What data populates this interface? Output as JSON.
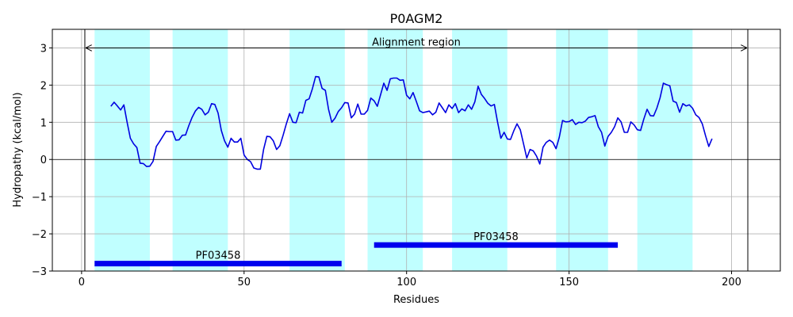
{
  "chart_data": {
    "type": "line",
    "title": "P0AGM2",
    "xlabel": "Residues",
    "ylabel": "Hydropathy (kcal/mol)",
    "xlim": [
      -9,
      215
    ],
    "ylim": [
      -3,
      3.5
    ],
    "xticks": [
      0,
      50,
      100,
      150,
      200
    ],
    "yticks": [
      -3,
      -2,
      -1,
      0,
      1,
      2,
      3
    ],
    "grid": true,
    "colors": {
      "line": "#0000e0",
      "band": "#c0ffff",
      "domain_bar": "#0000ee",
      "grid": "#b0b0b0",
      "axis": "#000000"
    },
    "shaded_regions": [
      [
        4,
        21
      ],
      [
        28,
        45
      ],
      [
        64,
        81
      ],
      [
        88,
        105
      ],
      [
        114,
        131
      ],
      [
        146,
        162
      ],
      [
        171,
        188
      ]
    ],
    "alignment_region": {
      "label": "Alignment region",
      "start": 1,
      "end": 205,
      "y": 3.0
    },
    "domains": [
      {
        "label": "PF03458",
        "start": 4,
        "end": 80,
        "y": -2.8
      },
      {
        "label": "PF03458",
        "start": 90,
        "end": 165,
        "y": -2.3
      }
    ],
    "series": [
      {
        "x": [
          9,
          10,
          11,
          12,
          13,
          14,
          15,
          16,
          17,
          18,
          19,
          20,
          21,
          22,
          23,
          24,
          25,
          26,
          27,
          28,
          29,
          30,
          31,
          32,
          33,
          34,
          35,
          36,
          37,
          38,
          39,
          40,
          41,
          42,
          43,
          44,
          45,
          46,
          47,
          48,
          49,
          50,
          51,
          52,
          53,
          54,
          55,
          56,
          57,
          58,
          59,
          60,
          61,
          62,
          63,
          64,
          65,
          66,
          67,
          68,
          69,
          70,
          71,
          72,
          73,
          74,
          75,
          76,
          77,
          78,
          79,
          80,
          81,
          82,
          83,
          84,
          85,
          86,
          87,
          88,
          89,
          90,
          91,
          92,
          93,
          94,
          95,
          96,
          97,
          98,
          99,
          100,
          101,
          102,
          103,
          104,
          105,
          106,
          107,
          108,
          109,
          110,
          111,
          112,
          113,
          114,
          115,
          116,
          117,
          118,
          119,
          120,
          121,
          122,
          123,
          124,
          125,
          126,
          127,
          128,
          129,
          130,
          131,
          132,
          133,
          134,
          135,
          136,
          137,
          138,
          139,
          140,
          141,
          142,
          143,
          144,
          145,
          146,
          147,
          148,
          149,
          150,
          151,
          152,
          153,
          154,
          155,
          156,
          157,
          158,
          159,
          160,
          161,
          162,
          163,
          164,
          165,
          166,
          167,
          168,
          169,
          170,
          171,
          172,
          173,
          174,
          175,
          176,
          177,
          178,
          179,
          180,
          181,
          182,
          183,
          184,
          185,
          186,
          187,
          188,
          189,
          190,
          191,
          192,
          193,
          194
        ],
        "values": [
          1.43,
          1.54,
          1.44,
          1.33,
          1.47,
          1.0,
          0.57,
          0.42,
          0.32,
          -0.1,
          -0.11,
          -0.19,
          -0.18,
          -0.05,
          0.35,
          0.48,
          0.62,
          0.76,
          0.75,
          0.75,
          0.52,
          0.53,
          0.65,
          0.66,
          0.91,
          1.13,
          1.3,
          1.4,
          1.35,
          1.2,
          1.27,
          1.5,
          1.48,
          1.25,
          0.78,
          0.5,
          0.33,
          0.57,
          0.47,
          0.47,
          0.57,
          0.12,
          0.0,
          -0.06,
          -0.23,
          -0.26,
          -0.26,
          0.27,
          0.62,
          0.61,
          0.5,
          0.27,
          0.37,
          0.65,
          0.96,
          1.23,
          1.0,
          0.99,
          1.27,
          1.25,
          1.59,
          1.63,
          1.9,
          2.23,
          2.22,
          1.91,
          1.86,
          1.35,
          1.0,
          1.11,
          1.29,
          1.39,
          1.53,
          1.52,
          1.12,
          1.22,
          1.49,
          1.22,
          1.22,
          1.32,
          1.65,
          1.58,
          1.43,
          1.74,
          2.05,
          1.86,
          2.17,
          2.19,
          2.19,
          2.13,
          2.14,
          1.73,
          1.63,
          1.8,
          1.56,
          1.31,
          1.26,
          1.28,
          1.3,
          1.2,
          1.27,
          1.52,
          1.39,
          1.26,
          1.47,
          1.37,
          1.5,
          1.26,
          1.36,
          1.31,
          1.47,
          1.35,
          1.55,
          1.97,
          1.75,
          1.64,
          1.51,
          1.44,
          1.48,
          1.0,
          0.57,
          0.73,
          0.55,
          0.54,
          0.77,
          0.96,
          0.8,
          0.42,
          0.04,
          0.27,
          0.23,
          0.09,
          -0.12,
          0.33,
          0.46,
          0.52,
          0.46,
          0.29,
          0.6,
          1.05,
          1.01,
          1.02,
          1.07,
          0.94,
          1.0,
          0.99,
          1.03,
          1.13,
          1.15,
          1.18,
          0.88,
          0.73,
          0.36,
          0.62,
          0.73,
          0.88,
          1.12,
          1.01,
          0.73,
          0.73,
          1.01,
          0.93,
          0.8,
          0.78,
          1.09,
          1.35,
          1.18,
          1.17,
          1.38,
          1.66,
          2.05,
          2.01,
          1.98,
          1.57,
          1.53,
          1.27,
          1.5,
          1.44,
          1.47,
          1.38,
          1.2,
          1.13,
          0.96,
          0.64,
          0.35,
          0.56
        ]
      }
    ]
  }
}
